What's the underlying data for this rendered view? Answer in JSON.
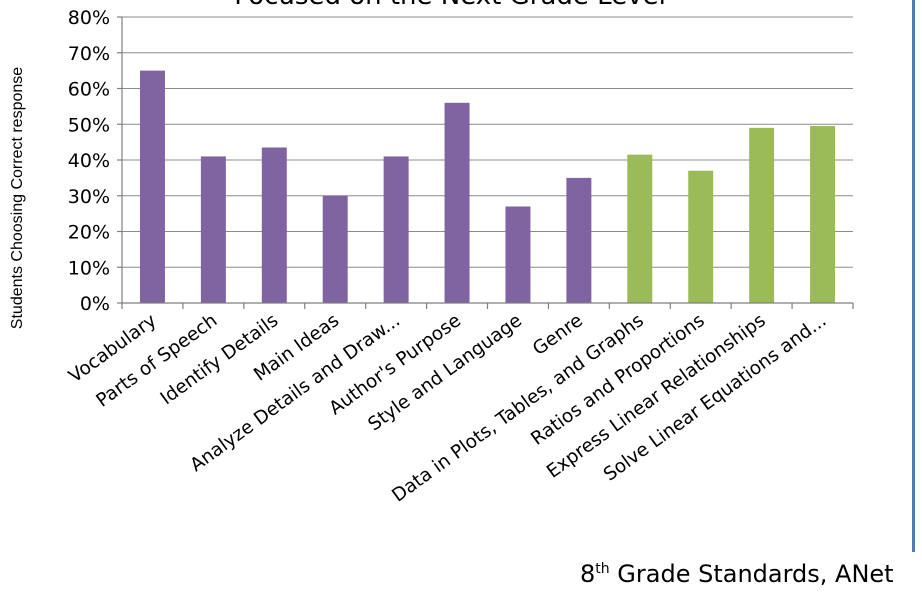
{
  "chart_data": {
    "type": "bar",
    "title": "Focused on the Next Grade Level",
    "ylabel": "Students Choosing Correct response",
    "xlabel": "",
    "ylim": [
      0,
      0.8
    ],
    "yticks": [
      0,
      0.1,
      0.2,
      0.3,
      0.4,
      0.5,
      0.6,
      0.7,
      0.8
    ],
    "ytick_labels": [
      "0%",
      "10%",
      "20%",
      "30%",
      "40%",
      "50%",
      "60%",
      "70%",
      "80%"
    ],
    "grid": true,
    "categories": [
      "Vocabulary",
      "Parts of Speech",
      "Identify Details",
      "Main Ideas",
      "Analyze Details and Draw...",
      "Author's Purpose",
      "Style and Language",
      "Genre",
      "Data in Plots, Tables, and Graphs",
      "Ratios and Proportions",
      "Express Linear Relationships",
      "Solve Linear Equations and..."
    ],
    "values": [
      0.65,
      0.41,
      0.435,
      0.3,
      0.41,
      0.56,
      0.27,
      0.35,
      0.415,
      0.37,
      0.49,
      0.495
    ],
    "colors": [
      "#8064a2",
      "#8064a2",
      "#8064a2",
      "#8064a2",
      "#8064a2",
      "#8064a2",
      "#8064a2",
      "#8064a2",
      "#9bbb59",
      "#9bbb59",
      "#9bbb59",
      "#9bbb59"
    ]
  },
  "footer": {
    "prefix": "8",
    "superscript": "th",
    "text": " Grade Standards, ANet"
  }
}
